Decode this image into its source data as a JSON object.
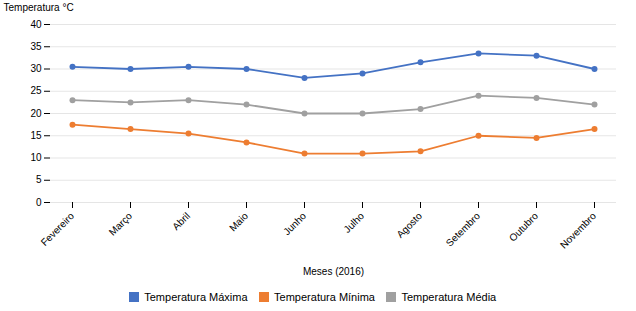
{
  "chart_data": {
    "type": "line",
    "categories": [
      "Fevereiro",
      "Março",
      "Abril",
      "Maio",
      "Junho",
      "Julho",
      "Agosto",
      "Setembro",
      "Outubro",
      "Novembro"
    ],
    "series": [
      {
        "name": "Temperatura Máxima",
        "color": "#4472C4",
        "values": [
          30.5,
          30.0,
          30.5,
          30.0,
          28.0,
          29.0,
          31.5,
          33.5,
          33.0,
          30.0
        ]
      },
      {
        "name": "Temperatura Mínima",
        "color": "#ED7D31",
        "values": [
          17.5,
          16.5,
          15.5,
          13.5,
          11.0,
          11.0,
          11.5,
          15.0,
          14.5,
          16.5
        ]
      },
      {
        "name": "Temperatura Média",
        "color": "#A0A0A0",
        "values": [
          23.0,
          22.5,
          23.0,
          22.0,
          20.0,
          20.0,
          21.0,
          24.0,
          23.5,
          22.0
        ]
      }
    ],
    "xlabel": "Meses (2016)",
    "ylabel": "Temperatura °C",
    "ylim": [
      0,
      40
    ],
    "yticks": [
      0,
      5,
      10,
      15,
      20,
      25,
      30,
      35,
      40
    ],
    "grid": true,
    "marker": "circle",
    "legend": "bottom"
  }
}
